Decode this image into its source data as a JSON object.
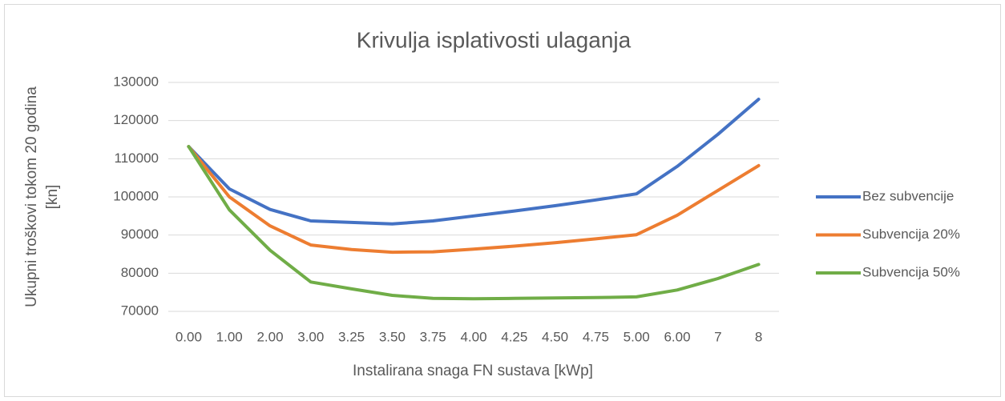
{
  "chart_data": {
    "type": "line",
    "title": "Krivulja isplativosti ulaganja",
    "x_label": "Instalirana snaga FN sustava [kWp]",
    "y_label": [
      "Ukupni troškovi tokom 20 godina",
      "[kn]"
    ],
    "categories": [
      "0.00",
      "1.00",
      "2.00",
      "3.00",
      "3.25",
      "3.50",
      "3.75",
      "4.00",
      "4.25",
      "4.50",
      "4.75",
      "5.00",
      "6.00",
      "7",
      "8"
    ],
    "series": [
      {
        "name": "Bez subvencije",
        "color": "#4472c4",
        "values": [
          113200,
          102100,
          96700,
          93700,
          93300,
          92900,
          93700,
          95000,
          96300,
          97700,
          99200,
          100800,
          108000,
          116400,
          125600
        ]
      },
      {
        "name": "Subvencija 20%",
        "color": "#ed7d31",
        "values": [
          113200,
          100000,
          92400,
          87400,
          86200,
          85500,
          85600,
          86300,
          87100,
          88000,
          89000,
          90100,
          95200,
          101700,
          108200
        ]
      },
      {
        "name": "Subvencija 50%",
        "color": "#70ad47",
        "values": [
          113200,
          96600,
          86000,
          77700,
          75900,
          74200,
          73400,
          73300,
          73400,
          73500,
          73600,
          73800,
          75600,
          78600,
          82300
        ]
      }
    ],
    "ylim": [
      70000,
      130000
    ],
    "yticks": [
      70000,
      80000,
      90000,
      100000,
      110000,
      120000,
      130000
    ],
    "grid": true,
    "legend": "right"
  }
}
